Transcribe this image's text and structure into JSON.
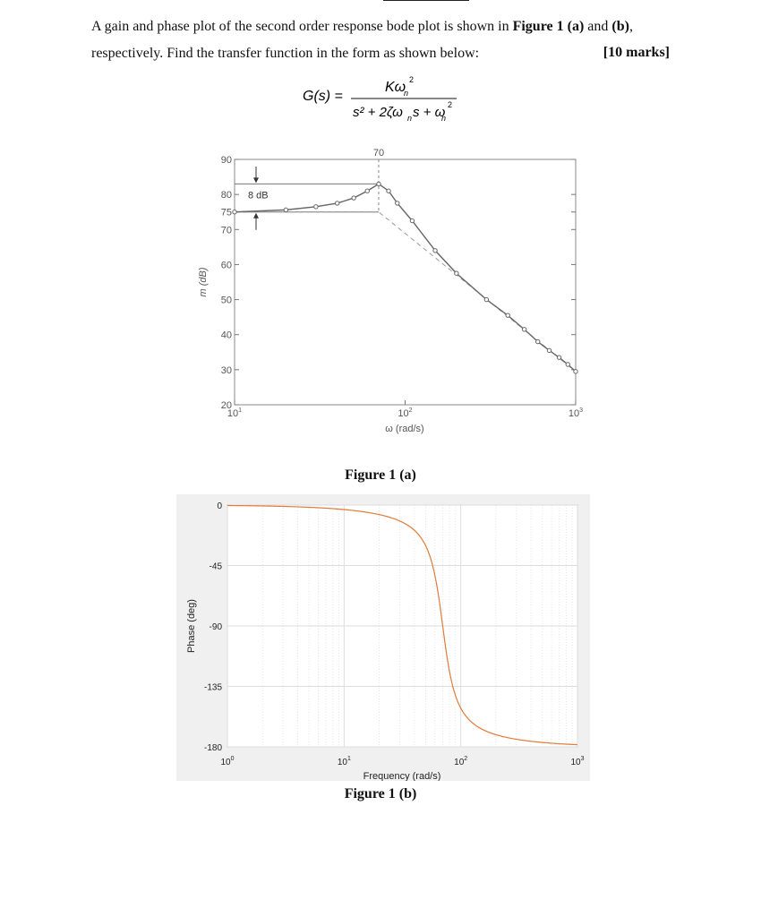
{
  "question": {
    "line1_a": "A gain and phase plot of the second order response bode plot is shown in ",
    "line1_fig": "Figure 1 (a)",
    "line1_and": " and ",
    "line1_b": "(b)",
    "line1_end": ",",
    "line2": "respectively. Find the transfer function in the form as shown below:",
    "marks": "[10 marks]"
  },
  "formula": {
    "lhs": "G(s) =",
    "numerator": "Kω",
    "numerator_sub": "n",
    "numerator_sup": "2",
    "denominator": "s² + 2ζω",
    "den_sub1": "n",
    "den_mid": "s + ω",
    "den_sub2": "n",
    "den_sup": "2"
  },
  "figure_a": {
    "caption": "Figure 1 (a)",
    "ylabel": "m (dB)",
    "xlabel": "ω (rad/s)",
    "annotation_peak_x": "70",
    "annotation_gap": "8 dB",
    "y_ticks": [
      "90",
      "80",
      "75",
      "70",
      "60",
      "50",
      "40",
      "30",
      "20"
    ],
    "x_ticks": [
      {
        "base": "10",
        "exp": "1"
      },
      {
        "base": "10",
        "exp": "2"
      },
      {
        "base": "10",
        "exp": "3"
      }
    ]
  },
  "figure_b": {
    "caption": "Figure 1 (b)",
    "ylabel": "Phase (deg)",
    "xlabel": "Frequency (rad/s)",
    "y_ticks": [
      "0",
      "-45",
      "-90",
      "-135",
      "-180"
    ],
    "x_ticks": [
      {
        "base": "10",
        "exp": "0"
      },
      {
        "base": "10",
        "exp": "1"
      },
      {
        "base": "10",
        "exp": "2"
      },
      {
        "base": "10",
        "exp": "3"
      }
    ],
    "line_color": "#e07b39"
  },
  "chart_data": [
    {
      "type": "line",
      "name_ref": "Figure 1 (a)",
      "xscale": "log",
      "xlim": [
        10,
        1000
      ],
      "ylim": [
        20,
        90
      ],
      "grid": false,
      "series": [
        {
          "x": [
            10,
            20,
            30,
            40,
            50,
            60,
            70,
            80,
            90,
            110,
            150,
            200,
            300,
            400,
            500,
            600,
            700,
            800,
            900,
            1000
          ],
          "y": [
            75.0,
            75.6,
            76.5,
            77.5,
            79.0,
            81.0,
            83.0,
            81.0,
            77.5,
            72.5,
            64.0,
            57.5,
            50.0,
            45.5,
            41.5,
            38.0,
            35.5,
            33.5,
            31.5,
            29.5
          ]
        },
        {
          "x": [
            10,
            70,
            1000
          ],
          "y": [
            75,
            75,
            29.5
          ],
          "style": "dashed"
        }
      ]
    },
    {
      "type": "line",
      "name_ref": "Figure 1 (b)",
      "xscale": "log",
      "xlim": [
        1,
        1000
      ],
      "ylim": [
        -180,
        0
      ],
      "grid": true,
      "series": [
        {
          "zeta": 0.2,
          "wn": 70
        }
      ]
    }
  ]
}
